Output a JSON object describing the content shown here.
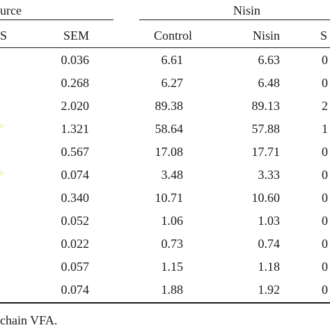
{
  "header": {
    "group_left_fragment": "urce",
    "group_right": "Nisin",
    "col_s_fragment": "S",
    "col_sem": "SEM",
    "col_control": "Control",
    "col_nisin": "Nisin",
    "col_cut": "S"
  },
  "rows": [
    {
      "sem": "0.036",
      "control": "6.61",
      "nisin": "6.63",
      "cut": "0"
    },
    {
      "sem": "0.268",
      "control": "6.27",
      "nisin": "6.48",
      "cut": "0"
    },
    {
      "sem": "2.020",
      "control": "89.38",
      "nisin": "89.13",
      "cut": "2"
    },
    {
      "sem": "1.321",
      "control": "58.64",
      "nisin": "57.88",
      "cut": "1"
    },
    {
      "sem": "0.567",
      "control": "17.08",
      "nisin": "17.71",
      "cut": "0"
    },
    {
      "sem": "0.074",
      "control": "3.48",
      "nisin": "3.33",
      "cut": "0"
    },
    {
      "sem": "0.340",
      "control": "10.71",
      "nisin": "10.60",
      "cut": "0"
    },
    {
      "sem": "0.052",
      "control": "1.06",
      "nisin": "1.03",
      "cut": "0"
    },
    {
      "sem": "0.022",
      "control": "0.73",
      "nisin": "0.74",
      "cut": "0"
    },
    {
      "sem": "0.057",
      "control": "1.15",
      "nisin": "1.18",
      "cut": "0"
    },
    {
      "sem": "0.074",
      "control": "1.88",
      "nisin": "1.92",
      "cut": "0"
    }
  ],
  "footnote": "chain VFA."
}
